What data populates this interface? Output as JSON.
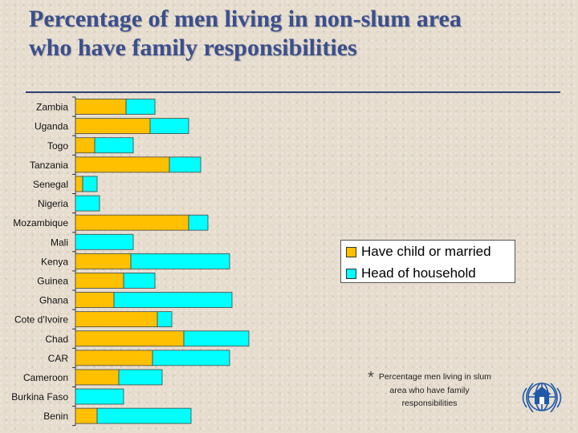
{
  "title": {
    "line1": "Percentage of men living in non-slum area",
    "line2": "who have family responsibilities"
  },
  "colors": {
    "series1": "#ffc000",
    "series2": "#00ffff",
    "title": "#3b4f8e"
  },
  "legend": {
    "series1_label": "Have child or married",
    "series2_label": "Head of household"
  },
  "note": {
    "star": "*",
    "text": "Percentage men living in slum area who have family responsibilities"
  },
  "logo": {
    "icon": "un-habitat-emblem-icon"
  },
  "chart_data": {
    "type": "bar",
    "orientation": "horizontal",
    "stacked": true,
    "categories": [
      "Zambia",
      "Uganda",
      "Togo",
      "Tanzania",
      "Senegal",
      "Nigeria",
      "Mozambique",
      "Mali",
      "Kenya",
      "Guinea",
      "Ghana",
      "Cote d'Ivoire",
      "Chad",
      "CAR",
      "Cameroon",
      "Burkina Faso",
      "Benin"
    ],
    "series": [
      {
        "name": "Have child or married",
        "color": "#ffc000",
        "values": [
          21,
          31,
          8,
          39,
          3,
          0,
          47,
          0,
          23,
          20,
          16,
          34,
          45,
          32,
          18,
          0,
          9
        ]
      },
      {
        "name": "Head of household",
        "color": "#00ffff",
        "values": [
          12,
          16,
          16,
          13,
          6,
          10,
          8,
          24,
          41,
          13,
          49,
          6,
          27,
          32,
          18,
          20,
          39
        ]
      }
    ],
    "xlim": [
      0,
      100
    ],
    "grid": false,
    "legend_position": "right"
  }
}
